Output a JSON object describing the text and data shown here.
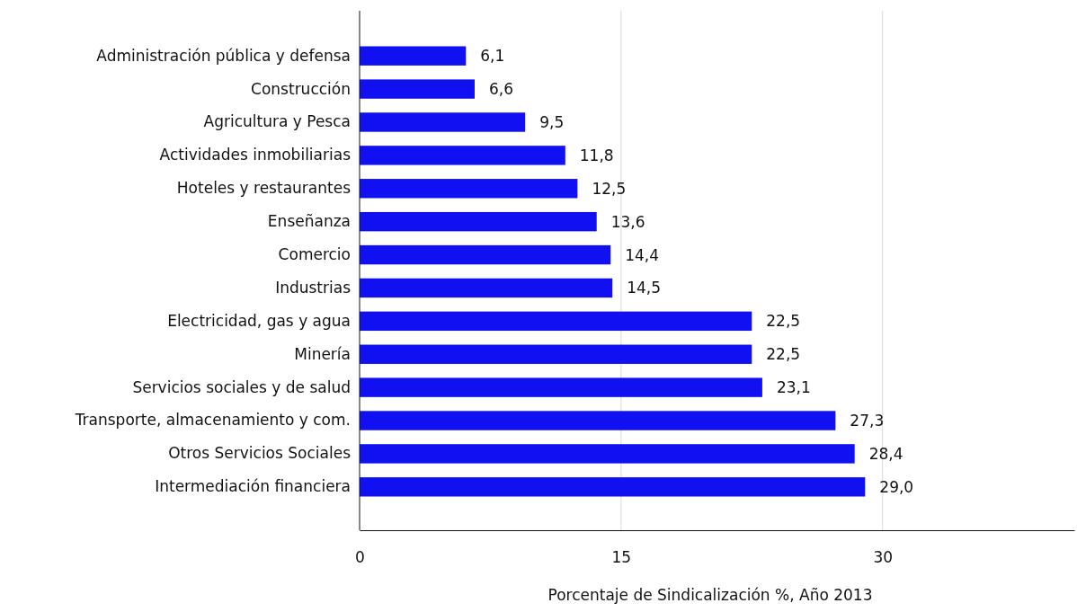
{
  "chart_data": {
    "type": "bar",
    "orientation": "horizontal",
    "xlabel": "Porcentaje de Sindicalización %, Año 2013",
    "categories": [
      "Administración pública y defensa",
      "Construcción",
      "Agricultura y Pesca",
      "Actividades inmobiliarias",
      "Hoteles y restaurantes",
      "Enseñanza",
      "Comercio",
      "Industrias",
      "Electricidad, gas y agua",
      "Minería",
      "Servicios sociales y de salud",
      "Transporte, almacenamiento y com.",
      "Otros Servicios Sociales",
      "Intermediación financiera"
    ],
    "values": [
      6.1,
      6.6,
      9.5,
      11.8,
      12.5,
      13.6,
      14.4,
      14.5,
      22.5,
      22.5,
      23.1,
      27.3,
      28.4,
      29.0
    ],
    "value_labels": [
      "6,1",
      "6,6",
      "9,5",
      "11,8",
      "12,5",
      "13,6",
      "14,4",
      "14,5",
      "22,5",
      "22,5",
      "23,1",
      "27,3",
      "28,4",
      "29,0"
    ],
    "color": "#1010f0",
    "xlim": [
      0,
      41
    ],
    "xticks": [
      0,
      15,
      30
    ],
    "grid": "x"
  }
}
